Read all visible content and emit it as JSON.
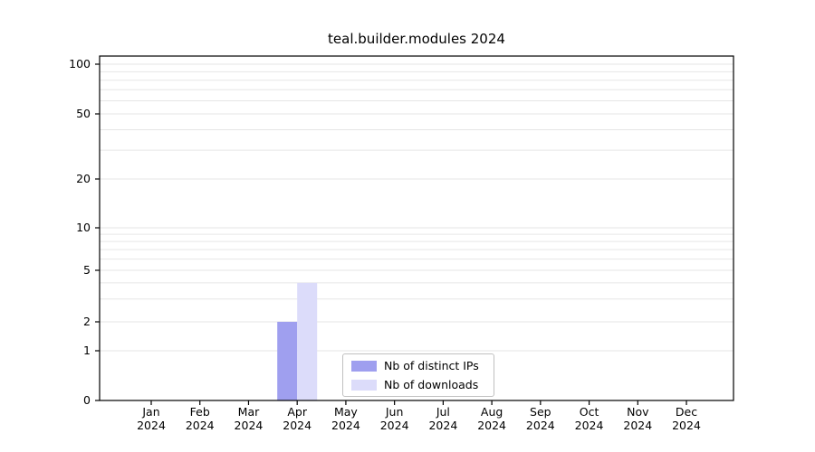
{
  "chart_data": {
    "type": "bar",
    "title": "teal.builder.modules 2024",
    "categories": [
      "Jan",
      "Feb",
      "Mar",
      "Apr",
      "May",
      "Jun",
      "Jul",
      "Aug",
      "Sep",
      "Oct",
      "Nov",
      "Dec"
    ],
    "year_label": "2024",
    "series": [
      {
        "name": "Nb of distinct IPs",
        "color": "#9f9fef",
        "values": [
          0,
          0,
          0,
          2,
          0,
          0,
          0,
          0,
          0,
          0,
          0,
          0
        ]
      },
      {
        "name": "Nb of downloads",
        "color": "#dcdcfa",
        "values": [
          0,
          0,
          0,
          4,
          0,
          0,
          0,
          0,
          0,
          0,
          0,
          0
        ]
      }
    ],
    "yticks": [
      0,
      1,
      2,
      5,
      10,
      20,
      50,
      100
    ],
    "minor_gridlines": [
      3,
      4,
      6,
      7,
      8,
      9,
      30,
      40,
      60,
      70,
      80,
      90
    ],
    "scale": "log-like",
    "ylim": [
      0,
      130
    ],
    "xlabel": "",
    "ylabel": "",
    "grid": "horizontal",
    "legend_position": "lower center",
    "gridline_color": "#e6e6e6",
    "axis_color": "#000000"
  }
}
